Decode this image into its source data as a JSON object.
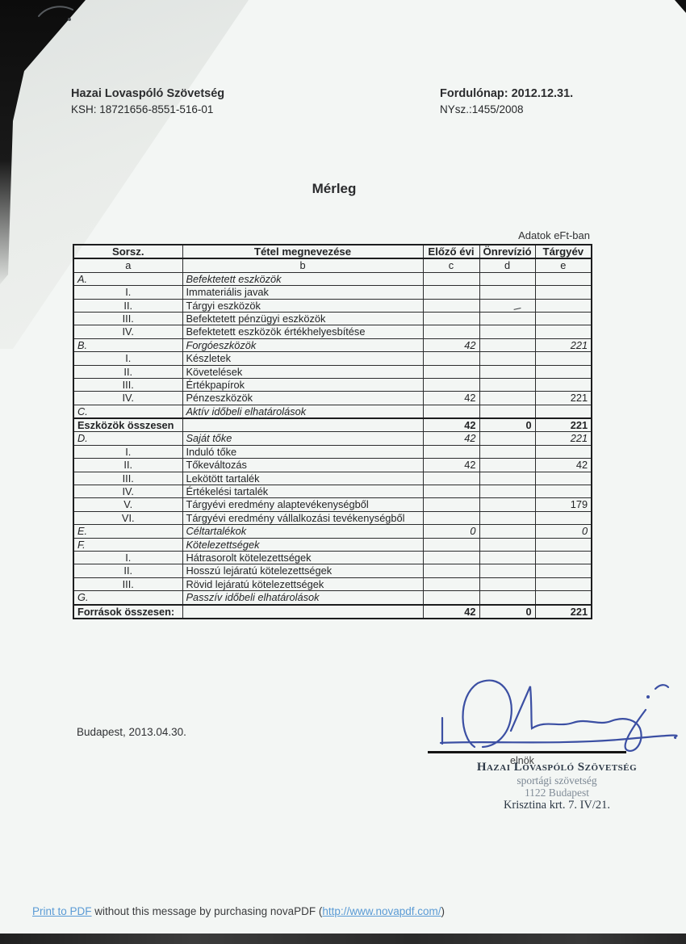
{
  "page": {
    "header_left": {
      "company": "Hazai Lovaspóló Szövetség",
      "ksh": "KSH: 18721656-8551-516-01"
    },
    "header_right": {
      "balance_date": "Fordulónap: 2012.12.31.",
      "registry_no": "NYsz.:1455/2008"
    },
    "title": "Mérleg",
    "units_note": "Adatok eFt-ban",
    "date_line": "Budapest, 2013.04.30.",
    "signature": {
      "role": "elnök",
      "stamp_line1": "Hazai Lovaspóló Szövetség",
      "stamp_line2": "sportági szövetség",
      "stamp_line3": "1122 Budapest",
      "stamp_line4": "Krisztina krt. 7. IV/21."
    },
    "footer": {
      "link1": "Print to PDF",
      "middle": " without this message by purchasing novaPDF (",
      "link2": "http://www.novapdf.com/",
      "end": ")"
    }
  },
  "table": {
    "headers": {
      "sorsz": "Sorsz.",
      "name": "Tétel megnevezése",
      "c": "Előző évi",
      "d": "Önrevízió",
      "e": "Tárgyév"
    },
    "subheaders": [
      "a",
      "b",
      "c",
      "d",
      "e"
    ],
    "rows": [
      {
        "sorsz": "A.",
        "label": "Befektetett eszközök",
        "c": "",
        "d": "",
        "e": "",
        "kind": "section"
      },
      {
        "sorsz": "I.",
        "label": "Immateriális javak",
        "c": "",
        "d": "",
        "e": "",
        "kind": "item"
      },
      {
        "sorsz": "II.",
        "label": "Tárgyi eszközök",
        "c": "",
        "d": "",
        "e": "",
        "kind": "item",
        "mark": true
      },
      {
        "sorsz": "III.",
        "label": "Befektetett pénzügyi eszközök",
        "c": "",
        "d": "",
        "e": "",
        "kind": "item"
      },
      {
        "sorsz": "IV.",
        "label": "Befektetett eszközök értékhelyesbítése",
        "c": "",
        "d": "",
        "e": "",
        "kind": "item"
      },
      {
        "sorsz": "B.",
        "label": "Forgóeszközök",
        "c": "42",
        "d": "",
        "e": "221",
        "kind": "section"
      },
      {
        "sorsz": "I.",
        "label": "Készletek",
        "c": "",
        "d": "",
        "e": "",
        "kind": "item"
      },
      {
        "sorsz": "II.",
        "label": "Követelések",
        "c": "",
        "d": "",
        "e": "",
        "kind": "item"
      },
      {
        "sorsz": "III.",
        "label": "Értékpapírok",
        "c": "",
        "d": "",
        "e": "",
        "kind": "item"
      },
      {
        "sorsz": "IV.",
        "label": "Pénzeszközök",
        "c": "42",
        "d": "",
        "e": "221",
        "kind": "item"
      },
      {
        "sorsz": "C.",
        "label": "Aktív időbeli elhatárolások",
        "c": "",
        "d": "",
        "e": "",
        "kind": "section"
      },
      {
        "sorsz": "Eszközök összesen",
        "label": "",
        "c": "42",
        "d": "0",
        "e": "221",
        "kind": "total"
      },
      {
        "sorsz": "D.",
        "label": "Saját tőke",
        "c": "42",
        "d": "",
        "e": "221",
        "kind": "section"
      },
      {
        "sorsz": "I.",
        "label": "Induló tőke",
        "c": "",
        "d": "",
        "e": "",
        "kind": "item"
      },
      {
        "sorsz": "II.",
        "label": "Tőkeváltozás",
        "c": "42",
        "d": "",
        "e": "42",
        "kind": "item"
      },
      {
        "sorsz": "III.",
        "label": "Lekötött tartalék",
        "c": "",
        "d": "",
        "e": "",
        "kind": "item"
      },
      {
        "sorsz": "IV.",
        "label": "Értékelési tartalék",
        "c": "",
        "d": "",
        "e": "",
        "kind": "item"
      },
      {
        "sorsz": "V.",
        "label": "Tárgyévi eredmény alaptevékenységből",
        "c": "",
        "d": "",
        "e": "179",
        "kind": "item"
      },
      {
        "sorsz": "VI.",
        "label": "Tárgyévi eredmény vállalkozási tevékenységből",
        "c": "",
        "d": "",
        "e": "",
        "kind": "item"
      },
      {
        "sorsz": "E.",
        "label": "Céltartalékok",
        "c": "0",
        "d": "",
        "e": "0",
        "kind": "section"
      },
      {
        "sorsz": "F.",
        "label": "Kötelezettségek",
        "c": "",
        "d": "",
        "e": "",
        "kind": "section"
      },
      {
        "sorsz": "I.",
        "label": "Hátrasorolt kötelezettségek",
        "c": "",
        "d": "",
        "e": "",
        "kind": "item"
      },
      {
        "sorsz": "II.",
        "label": "Hosszú lejáratú kötelezettségek",
        "c": "",
        "d": "",
        "e": "",
        "kind": "item"
      },
      {
        "sorsz": "III.",
        "label": "Rövid lejáratú kötelezettségek",
        "c": "",
        "d": "",
        "e": "",
        "kind": "item"
      },
      {
        "sorsz": "G.",
        "label": "Passzív időbeli elhatárolások",
        "c": "",
        "d": "",
        "e": "",
        "kind": "section"
      },
      {
        "sorsz": "Források összesen:",
        "label": "",
        "c": "42",
        "d": "0",
        "e": "221",
        "kind": "total"
      }
    ]
  },
  "colors": {
    "signature_ink": "#3b4fa3",
    "link_blue": "#5b9bd5",
    "stamp_ink": "#2d3947",
    "scan_edge_black": "#101010"
  }
}
